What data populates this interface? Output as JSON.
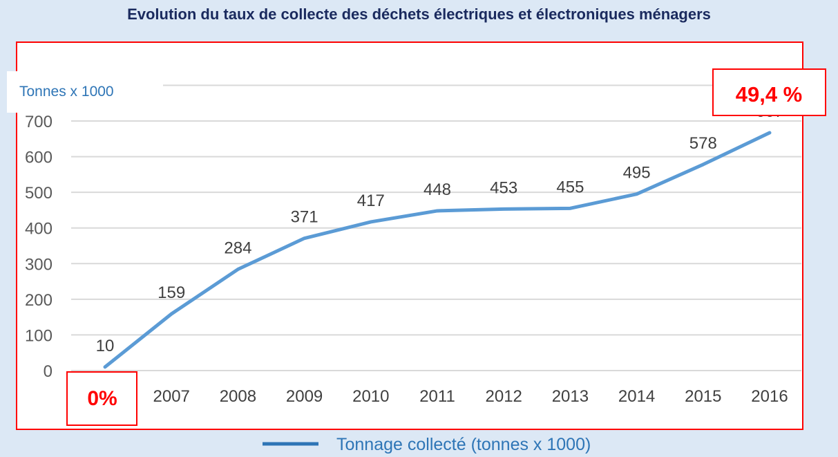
{
  "title": "Evolution du taux de collecte des déchets électriques et électroniques ménagers",
  "unit_label": "Tonnes x 1000",
  "start_rate": "0%",
  "end_rate": "49,4 %",
  "colors": {
    "line": "#5b9bd5",
    "frame": "#ff0000",
    "title": "#1a2a5e",
    "unit": "#2e75b6",
    "background": "#dce8f5"
  },
  "chart_data": {
    "type": "line",
    "title": "Evolution du taux de collecte des déchets électriques et électroniques ménagers",
    "categories": [
      "",
      "2007",
      "2008",
      "2009",
      "2010",
      "2011",
      "2012",
      "2013",
      "2014",
      "2015",
      "2016"
    ],
    "series": [
      {
        "name": "Tonnage collecté (tonnes x 1000)",
        "values": [
          10,
          159,
          284,
          371,
          417,
          448,
          453,
          455,
          495,
          578,
          667
        ]
      }
    ],
    "ylabel": "Tonnes x 1000",
    "ylim": [
      0,
      800
    ],
    "yticks": [
      0,
      100,
      200,
      300,
      400,
      500,
      600,
      700
    ],
    "grid": true,
    "legend": "bottom"
  }
}
